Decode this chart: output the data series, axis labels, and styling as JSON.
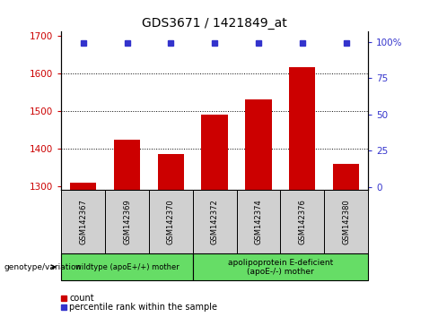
{
  "title": "GDS3671 / 1421849_at",
  "samples": [
    "GSM142367",
    "GSM142369",
    "GSM142370",
    "GSM142372",
    "GSM142374",
    "GSM142376",
    "GSM142380"
  ],
  "counts": [
    1310,
    1425,
    1385,
    1490,
    1530,
    1615,
    1360
  ],
  "percentiles": [
    99,
    99,
    99,
    99,
    99,
    99,
    99
  ],
  "ylim_left": [
    1290,
    1710
  ],
  "ylim_right": [
    -2.1,
    107
  ],
  "yticks_left": [
    1300,
    1400,
    1500,
    1600,
    1700
  ],
  "yticks_right": [
    0,
    25,
    50,
    75,
    100
  ],
  "ytick_labels_right": [
    "0",
    "25",
    "50",
    "75",
    "100%"
  ],
  "bar_color": "#cc0000",
  "dot_color": "#3333cc",
  "group1_label": "wildtype (apoE+/+) mother",
  "group2_label": "apolipoprotein E-deficient\n(apoE-/-) mother",
  "group1_indices": [
    0,
    1,
    2
  ],
  "group2_indices": [
    3,
    4,
    5,
    6
  ],
  "group_bg_color": "#66dd66",
  "sample_box_color": "#d0d0d0",
  "genotype_label": "genotype/variation",
  "legend_count_label": "count",
  "legend_percentile_label": "percentile rank within the sample",
  "grid_color": "#000000",
  "bar_bottom": 1290
}
